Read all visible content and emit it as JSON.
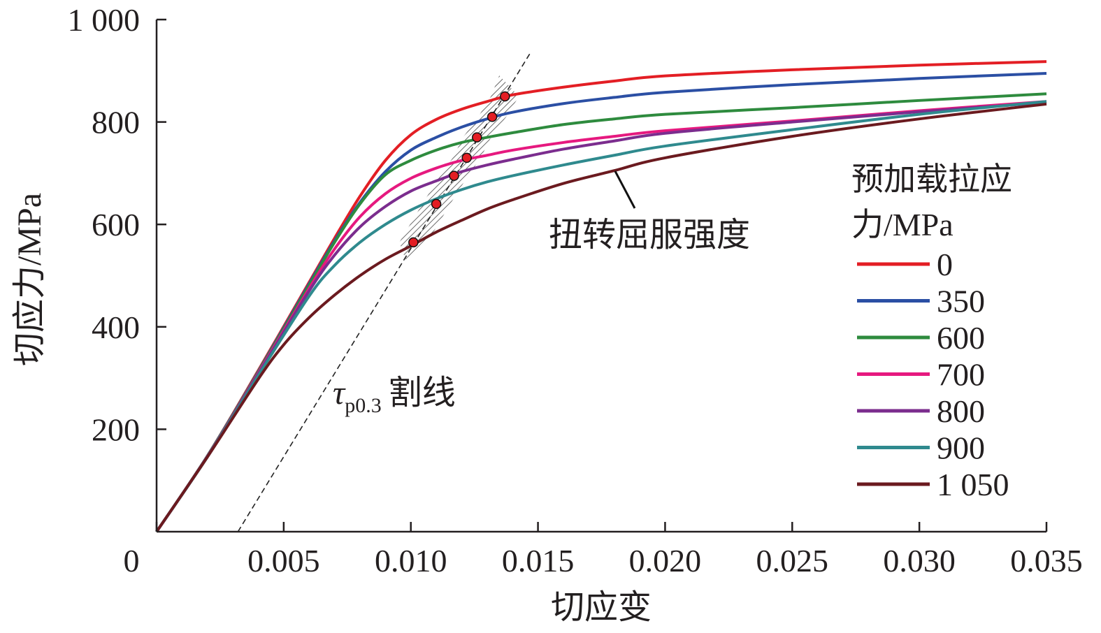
{
  "chart_data": {
    "type": "line",
    "xlabel": "切应变",
    "ylabel": "切应力/MPa",
    "xlim": [
      0,
      0.035
    ],
    "ylim": [
      0,
      1000
    ],
    "x_ticks": [
      0,
      0.005,
      0.01,
      0.015,
      0.02,
      0.025,
      0.03,
      0.035
    ],
    "x_tick_labels": [
      "0",
      "0.005",
      "0.010",
      "0.015",
      "0.020",
      "0.025",
      "0.030",
      "0.035"
    ],
    "y_ticks": [
      200,
      400,
      600,
      800,
      1000
    ],
    "y_tick_labels": [
      "200",
      "400",
      "600",
      "800",
      "1 000"
    ],
    "grid": false,
    "legend": {
      "title_line1": "预加载拉应",
      "title_line2": "力/MPa",
      "placement": "right"
    },
    "series": [
      {
        "name": "0",
        "color": "#e31e24",
        "x": [
          0,
          0.002,
          0.004,
          0.006,
          0.007,
          0.008,
          0.009,
          0.01,
          0.011,
          0.012,
          0.013,
          0.014,
          0.016,
          0.018,
          0.02,
          0.025,
          0.03,
          0.035
        ],
        "y": [
          0,
          148,
          315,
          487,
          573,
          655,
          725,
          775,
          805,
          825,
          840,
          853,
          868,
          880,
          890,
          902,
          911,
          918
        ]
      },
      {
        "name": "350",
        "color": "#2b4fa4",
        "x": [
          0,
          0.002,
          0.004,
          0.006,
          0.007,
          0.008,
          0.009,
          0.01,
          0.011,
          0.012,
          0.013,
          0.014,
          0.016,
          0.018,
          0.02,
          0.025,
          0.03,
          0.035
        ],
        "y": [
          0,
          148,
          313,
          484,
          568,
          643,
          703,
          745,
          770,
          790,
          806,
          819,
          836,
          848,
          858,
          873,
          885,
          895
        ]
      },
      {
        "name": "600",
        "color": "#2e8b3e",
        "x": [
          0,
          0.002,
          0.004,
          0.006,
          0.007,
          0.008,
          0.009,
          0.01,
          0.011,
          0.012,
          0.013,
          0.014,
          0.016,
          0.018,
          0.02,
          0.025,
          0.03,
          0.035
        ],
        "y": [
          0,
          148,
          312,
          481,
          565,
          640,
          697,
          725,
          745,
          760,
          770,
          779,
          795,
          806,
          815,
          828,
          842,
          855
        ]
      },
      {
        "name": "700",
        "color": "#e6197f",
        "x": [
          0,
          0.002,
          0.004,
          0.006,
          0.007,
          0.008,
          0.009,
          0.01,
          0.011,
          0.012,
          0.013,
          0.014,
          0.016,
          0.018,
          0.02,
          0.025,
          0.03,
          0.035
        ],
        "y": [
          0,
          147,
          310,
          475,
          552,
          615,
          660,
          690,
          710,
          725,
          735,
          745,
          760,
          772,
          783,
          802,
          822,
          840
        ]
      },
      {
        "name": "800",
        "color": "#7b2d8e",
        "x": [
          0,
          0.002,
          0.004,
          0.006,
          0.007,
          0.008,
          0.009,
          0.01,
          0.011,
          0.012,
          0.013,
          0.014,
          0.016,
          0.018,
          0.02,
          0.025,
          0.03,
          0.035
        ],
        "y": [
          0,
          147,
          308,
          470,
          540,
          595,
          635,
          665,
          685,
          703,
          716,
          727,
          747,
          763,
          778,
          800,
          820,
          838
        ]
      },
      {
        "name": "900",
        "color": "#2f8a8e",
        "x": [
          0,
          0.002,
          0.004,
          0.006,
          0.007,
          0.008,
          0.009,
          0.01,
          0.011,
          0.012,
          0.013,
          0.014,
          0.016,
          0.018,
          0.02,
          0.025,
          0.03,
          0.035
        ],
        "y": [
          0,
          146,
          305,
          460,
          520,
          565,
          600,
          628,
          650,
          668,
          683,
          695,
          716,
          735,
          753,
          785,
          815,
          840
        ]
      },
      {
        "name": "1 050",
        "color": "#6b1a1f",
        "x": [
          0,
          0.002,
          0.004,
          0.005,
          0.006,
          0.007,
          0.008,
          0.009,
          0.01,
          0.011,
          0.012,
          0.013,
          0.014,
          0.016,
          0.018,
          0.02,
          0.025,
          0.03,
          0.035
        ],
        "y": [
          0,
          146,
          298,
          365,
          418,
          462,
          500,
          532,
          558,
          585,
          608,
          630,
          648,
          680,
          705,
          730,
          772,
          806,
          835
        ]
      }
    ],
    "yield_points": [
      {
        "series": "0",
        "x": 0.0137,
        "y": 850
      },
      {
        "series": "350",
        "x": 0.0132,
        "y": 810
      },
      {
        "series": "600",
        "x": 0.0126,
        "y": 770
      },
      {
        "series": "700",
        "x": 0.0122,
        "y": 730
      },
      {
        "series": "800",
        "x": 0.0117,
        "y": 695
      },
      {
        "series": "900",
        "x": 0.011,
        "y": 640
      },
      {
        "series": "1 050",
        "x": 0.0101,
        "y": 565
      }
    ],
    "secant_line": {
      "x": [
        0.0032,
        0.0147
      ],
      "y": [
        0,
        935
      ]
    },
    "annotations": {
      "yield_label": "扭转屈服强度",
      "secant_symbol": "τ",
      "secant_subscript": "p0.3",
      "secant_text": "割线"
    }
  }
}
